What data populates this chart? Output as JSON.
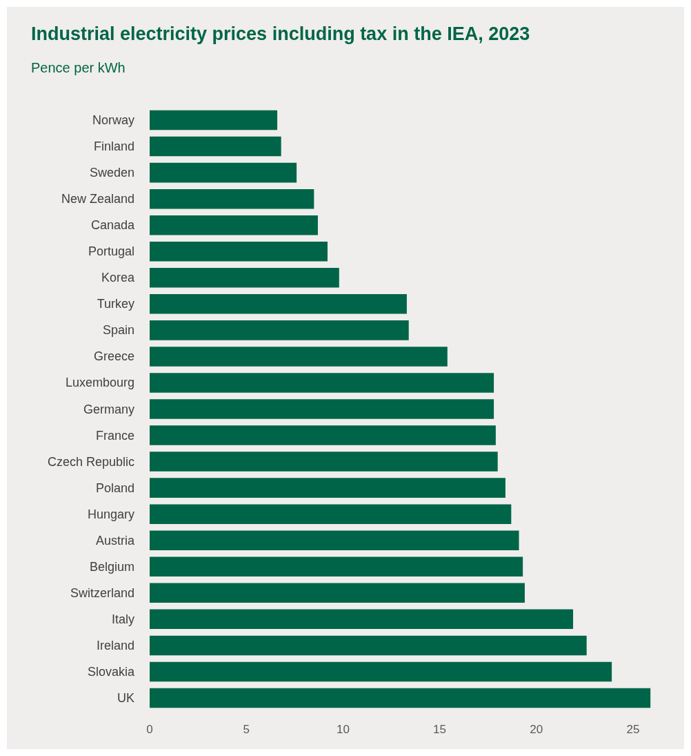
{
  "chart_data": {
    "type": "bar",
    "orientation": "horizontal",
    "title": "Industrial electricity prices including tax in the IEA, 2023",
    "subtitle": "Pence per kWh",
    "categories": [
      "Norway",
      "Finland",
      "Sweden",
      "New Zealand",
      "Canada",
      "Portugal",
      "Korea",
      "Turkey",
      "Spain",
      "Greece",
      "Luxembourg",
      "Germany",
      "France",
      "Czech Republic",
      "Poland",
      "Hungary",
      "Austria",
      "Belgium",
      "Switzerland",
      "Italy",
      "Ireland",
      "Slovakia",
      "UK"
    ],
    "values": [
      6.6,
      6.8,
      7.6,
      8.5,
      8.7,
      9.2,
      9.8,
      13.3,
      13.4,
      15.4,
      17.8,
      17.8,
      17.9,
      18.0,
      18.4,
      18.7,
      19.1,
      19.3,
      19.4,
      21.9,
      22.6,
      23.9,
      25.9
    ],
    "color": "#006548",
    "xlim": [
      0,
      26
    ],
    "xticks": [
      0,
      5,
      10,
      15,
      20,
      25
    ],
    "grid": false
  }
}
